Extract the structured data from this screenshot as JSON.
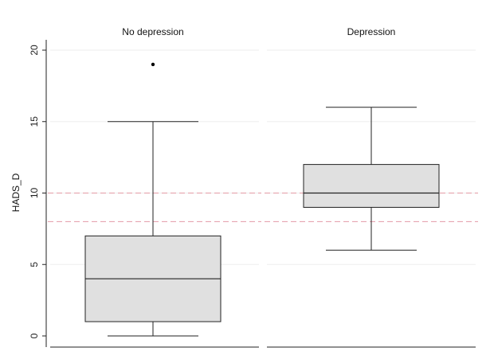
{
  "chart_data": {
    "type": "boxplot",
    "ylabel": "HADS_D",
    "ylim": [
      0,
      20
    ],
    "yticks": [
      0,
      5,
      10,
      15,
      20
    ],
    "grid": "horizontal",
    "reference_lines": [
      8,
      10
    ],
    "colors": {
      "box_fill": "#e0e0e0",
      "box_stroke": "#222222",
      "grid": "#eeeeee",
      "reference_line": "#e39aa6",
      "axis": "#222222"
    },
    "panels": [
      {
        "title": "No depression",
        "min": 0,
        "q1": 1,
        "median": 4,
        "q3": 7,
        "max": 15,
        "outliers": [
          19
        ]
      },
      {
        "title": "Depression",
        "min": 6,
        "q1": 9,
        "median": 10,
        "q3": 12,
        "max": 16,
        "outliers": []
      }
    ]
  }
}
